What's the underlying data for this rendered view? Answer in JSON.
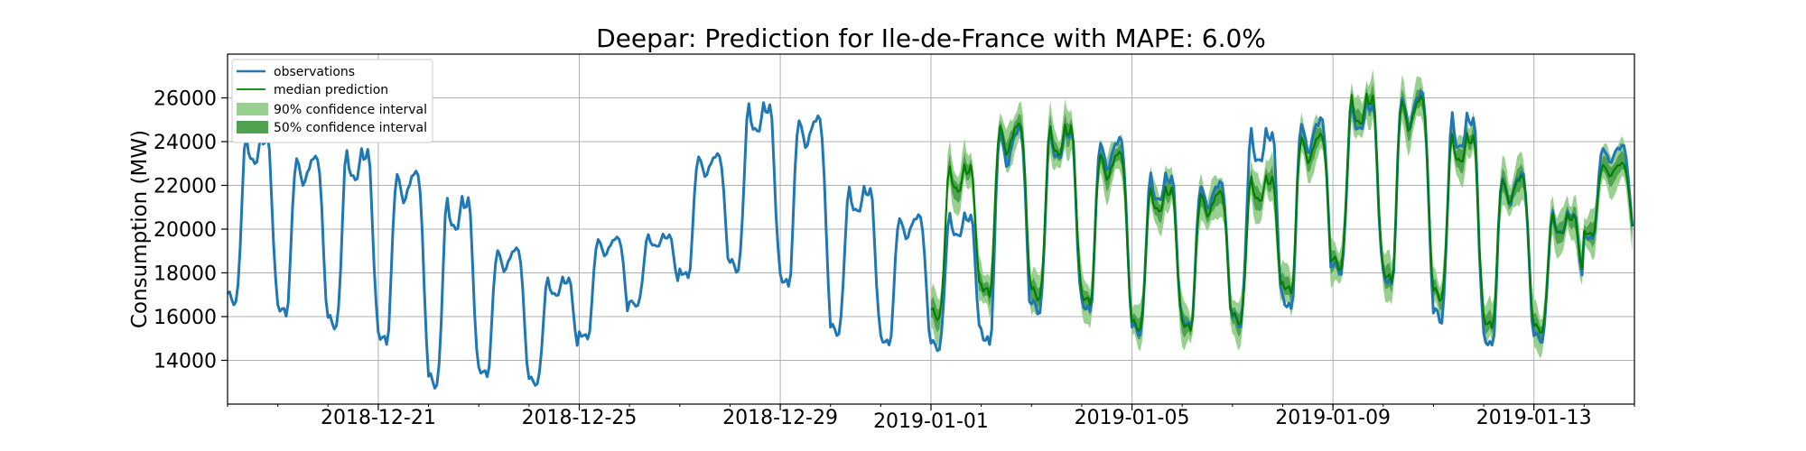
{
  "chart_data": {
    "type": "line",
    "title": "Deepar: Prediction for Ile-de-France with MAPE: 6.0%",
    "xlabel": "",
    "ylabel": "Consumption (MW)",
    "x_range": [
      "2018-12-18",
      "2019-01-15"
    ],
    "ylim": [
      12000,
      28000
    ],
    "x_ticks": [
      "2018-12-21",
      "2018-12-25",
      "2018-12-29",
      "2019-01-01",
      "2019-01-05",
      "2019-01-09",
      "2019-01-13"
    ],
    "y_ticks": [
      14000,
      16000,
      18000,
      20000,
      22000,
      24000,
      26000
    ],
    "grid": true,
    "legend_position": "top-left",
    "colors": {
      "observations": "#1f77b4",
      "median": "#008000",
      "band90": "#98d08f",
      "band50": "#4fa24f"
    },
    "series": [
      {
        "name": "observations",
        "x": [
          "2018-12-18",
          "2018-12-19",
          "2018-12-20",
          "2018-12-21",
          "2018-12-22",
          "2018-12-23",
          "2018-12-24",
          "2018-12-25",
          "2018-12-26",
          "2018-12-27",
          "2018-12-28",
          "2018-12-29",
          "2018-12-30",
          "2018-12-31",
          "2019-01-01",
          "2019-01-02",
          "2019-01-03",
          "2019-01-04",
          "2019-01-05",
          "2019-01-06",
          "2019-01-07",
          "2019-01-08",
          "2019-01-09",
          "2019-01-10",
          "2019-01-11",
          "2019-01-12",
          "2019-01-13",
          "2019-01-14"
        ],
        "daily_min": [
          16600,
          16100,
          15500,
          14800,
          12800,
          13300,
          12900,
          15000,
          16500,
          17800,
          18100,
          17400,
          15200,
          14700,
          14500,
          14700,
          16200,
          16200,
          15200,
          15500,
          15600,
          16300,
          18000,
          17400,
          15800,
          14600,
          14900,
          19500
        ],
        "daily_max": [
          24200,
          23300,
          23500,
          22600,
          21300,
          19100,
          17700,
          19600,
          19700,
          23400,
          25600,
          25100,
          21800,
          20600,
          20600,
          24600,
          24500,
          24100,
          22400,
          22100,
          24400,
          25000,
          25700,
          26200,
          25100,
          22500,
          20700,
          23800
        ]
      },
      {
        "name": "median prediction",
        "x": [
          "2019-01-01",
          "2019-01-02",
          "2019-01-03",
          "2019-01-04",
          "2019-01-05",
          "2019-01-06",
          "2019-01-07",
          "2019-01-08",
          "2019-01-09",
          "2019-01-10",
          "2019-01-11",
          "2019-01-12",
          "2019-01-13",
          "2019-01-14"
        ],
        "daily_min": [
          15900,
          17000,
          16800,
          16600,
          15400,
          15400,
          15700,
          17100,
          18200,
          17600,
          16800,
          15500,
          15300,
          19700
        ],
        "daily_max": [
          22800,
          24800,
          24600,
          23500,
          21800,
          21700,
          22300,
          24300,
          26000,
          26000,
          24200,
          22400,
          20600,
          23000
        ]
      },
      {
        "name": "90% confidence interval"
      },
      {
        "name": "50% confidence interval"
      }
    ]
  }
}
